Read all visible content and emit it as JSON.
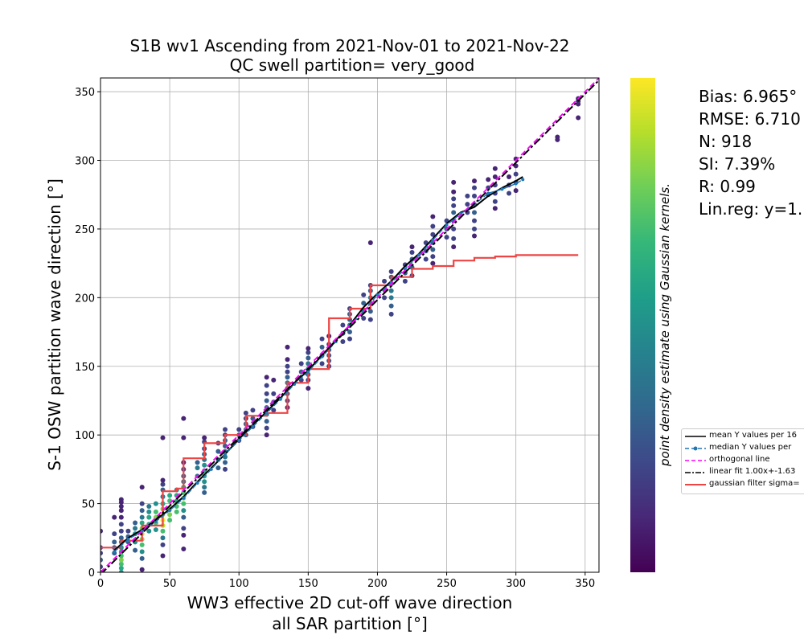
{
  "chart_data": {
    "type": "scatter",
    "title": [
      "S1B wv1 Ascending from 2021-Nov-01 to 2021-Nov-22",
      "QC swell partition= very_good"
    ],
    "xlabel": [
      "WW3 effective 2D cut-off wave direction",
      "all SAR partition [°]"
    ],
    "ylabel": "S-1 OSW partition wave direction [°]",
    "colorbar_label": "point density estimate using Gaussian kernels.",
    "xlim": [
      0,
      360
    ],
    "ylim": [
      0,
      360
    ],
    "xticks": [
      0,
      50,
      100,
      150,
      200,
      250,
      300,
      350
    ],
    "yticks": [
      0,
      50,
      100,
      150,
      200,
      250,
      300,
      350
    ],
    "grid": true,
    "legend_position": "right",
    "colormap": [
      "#440154",
      "#482878",
      "#3e4989",
      "#31688e",
      "#26828e",
      "#1f9e89",
      "#35b779",
      "#6ece58",
      "#b5de2b",
      "#fde725"
    ],
    "stats": [
      "Bias: 6.965°",
      "RMSE: 6.710",
      "N: 918",
      "SI: 7.39%",
      "R: 0.99",
      "Lin.reg: y=1."
    ],
    "legend": [
      {
        "label": "mean Y values per 16",
        "color": "#000000",
        "style": "solid"
      },
      {
        "label": "median Y values per",
        "color": "#1f77b4",
        "style": "dashed-marker"
      },
      {
        "label": "orthogonal line",
        "color": "#ff00ff",
        "style": "dashed"
      },
      {
        "label": "linear fit 1.00x+-1.63",
        "color": "#000000",
        "style": "dashdot"
      },
      {
        "label": "gaussian filter sigma=",
        "color": "#ee4444",
        "style": "solid"
      }
    ],
    "scatter_columns": [
      {
        "x": 0,
        "y": [
          0,
          4,
          9,
          14,
          18,
          30
        ],
        "d": [
          0.2,
          0.2,
          0.3,
          0.2,
          0.2,
          0.1
        ]
      },
      {
        "x": 10,
        "y": [
          14,
          18,
          22,
          28,
          40
        ],
        "d": [
          0.3,
          0.3,
          0.3,
          0.2,
          0.1
        ]
      },
      {
        "x": 15,
        "y": [
          0,
          3,
          6,
          9,
          12,
          15,
          18,
          22,
          25,
          30,
          35,
          40,
          45,
          48,
          51,
          53
        ],
        "d": [
          0.5,
          0.6,
          0.7,
          0.8,
          0.7,
          0.6,
          0.5,
          0.4,
          0.3,
          0.2,
          0.2,
          0.1,
          0.1,
          0.1,
          0.1,
          0.1
        ]
      },
      {
        "x": 20,
        "y": [
          22,
          26,
          30
        ],
        "d": [
          0.3,
          0.3,
          0.2
        ]
      },
      {
        "x": 25,
        "y": [
          16,
          22,
          28,
          32,
          36
        ],
        "d": [
          0.3,
          0.5,
          0.5,
          0.4,
          0.3
        ]
      },
      {
        "x": 30,
        "y": [
          2,
          10,
          15,
          20,
          24,
          28,
          32,
          36,
          40,
          45,
          50,
          62
        ],
        "d": [
          0.1,
          0.3,
          0.5,
          0.7,
          0.8,
          0.9,
          0.8,
          0.6,
          0.4,
          0.3,
          0.2,
          0.1
        ]
      },
      {
        "x": 35,
        "y": [
          30,
          35,
          40,
          44,
          48
        ],
        "d": [
          0.5,
          0.6,
          0.6,
          0.5,
          0.4
        ]
      },
      {
        "x": 40,
        "y": [
          31,
          36,
          40,
          44,
          50
        ],
        "d": [
          0.5,
          0.7,
          0.8,
          0.7,
          0.5
        ]
      },
      {
        "x": 45,
        "y": [
          12,
          20,
          25,
          30,
          34,
          38,
          42,
          46,
          50,
          55,
          60,
          64,
          67,
          98
        ],
        "d": [
          0.1,
          0.2,
          0.4,
          0.7,
          0.9,
          1.0,
          0.95,
          0.8,
          0.6,
          0.4,
          0.3,
          0.2,
          0.1,
          0.1
        ]
      },
      {
        "x": 50,
        "y": [
          38,
          42,
          46,
          52,
          56
        ],
        "d": [
          0.7,
          0.8,
          0.8,
          0.7,
          0.6
        ]
      },
      {
        "x": 55,
        "y": [
          44,
          48,
          52,
          56,
          60
        ],
        "d": [
          0.7,
          0.7,
          0.6,
          0.6,
          0.5
        ]
      },
      {
        "x": 60,
        "y": [
          17,
          27,
          32,
          40,
          45,
          50,
          54,
          58,
          62,
          66,
          70,
          75,
          80,
          98,
          112
        ],
        "d": [
          0.1,
          0.1,
          0.2,
          0.3,
          0.5,
          0.7,
          0.8,
          0.7,
          0.6,
          0.4,
          0.3,
          0.2,
          0.1,
          0.1,
          0.1
        ]
      },
      {
        "x": 70,
        "y": [
          70,
          76,
          80
        ],
        "d": [
          0.4,
          0.4,
          0.3
        ]
      },
      {
        "x": 75,
        "y": [
          58,
          62,
          66,
          70,
          74,
          78,
          82,
          86,
          90,
          95,
          98
        ],
        "d": [
          0.3,
          0.4,
          0.5,
          0.6,
          0.6,
          0.5,
          0.4,
          0.3,
          0.2,
          0.2,
          0.1
        ]
      },
      {
        "x": 85,
        "y": [
          76,
          82,
          88,
          94
        ],
        "d": [
          0.3,
          0.4,
          0.3,
          0.2
        ]
      },
      {
        "x": 90,
        "y": [
          75,
          80,
          84,
          88,
          92,
          96,
          100,
          104
        ],
        "d": [
          0.2,
          0.3,
          0.4,
          0.4,
          0.3,
          0.3,
          0.2,
          0.2
        ]
      },
      {
        "x": 100,
        "y": [
          96,
          100,
          104
        ],
        "d": [
          0.2,
          0.3,
          0.2
        ]
      },
      {
        "x": 105,
        "y": [
          100,
          104,
          108,
          112,
          116
        ],
        "d": [
          0.3,
          0.4,
          0.3,
          0.2,
          0.2
        ]
      },
      {
        "x": 110,
        "y": [
          106,
          112,
          118
        ],
        "d": [
          0.2,
          0.3,
          0.2
        ]
      },
      {
        "x": 120,
        "y": [
          100,
          105,
          110,
          115,
          120,
          125,
          130,
          136,
          142
        ],
        "d": [
          0.1,
          0.2,
          0.3,
          0.4,
          0.4,
          0.3,
          0.2,
          0.2,
          0.1
        ]
      },
      {
        "x": 125,
        "y": [
          118,
          124,
          130,
          140
        ],
        "d": [
          0.2,
          0.3,
          0.2,
          0.1
        ]
      },
      {
        "x": 135,
        "y": [
          120,
          125,
          130,
          134,
          138,
          142,
          146,
          150,
          155,
          164
        ],
        "d": [
          0.1,
          0.2,
          0.3,
          0.4,
          0.4,
          0.3,
          0.2,
          0.2,
          0.1,
          0.1
        ]
      },
      {
        "x": 145,
        "y": [
          140,
          146,
          152
        ],
        "d": [
          0.2,
          0.3,
          0.2
        ]
      },
      {
        "x": 150,
        "y": [
          134,
          140,
          144,
          148,
          152,
          156,
          160,
          163
        ],
        "d": [
          0.1,
          0.2,
          0.3,
          0.4,
          0.4,
          0.3,
          0.2,
          0.1
        ]
      },
      {
        "x": 160,
        "y": [
          152,
          158,
          164,
          170
        ],
        "d": [
          0.2,
          0.3,
          0.3,
          0.2
        ]
      },
      {
        "x": 165,
        "y": [
          150,
          154,
          158,
          162,
          166,
          172
        ],
        "d": [
          0.2,
          0.3,
          0.3,
          0.3,
          0.2,
          0.1
        ]
      },
      {
        "x": 175,
        "y": [
          168,
          174,
          180
        ],
        "d": [
          0.2,
          0.3,
          0.2
        ]
      },
      {
        "x": 180,
        "y": [
          170,
          175,
          180,
          184,
          188,
          192
        ],
        "d": [
          0.2,
          0.3,
          0.4,
          0.3,
          0.3,
          0.2
        ]
      },
      {
        "x": 190,
        "y": [
          185,
          190,
          196,
          202
        ],
        "d": [
          0.2,
          0.3,
          0.3,
          0.2
        ]
      },
      {
        "x": 195,
        "y": [
          184,
          190,
          196,
          200,
          205,
          209,
          240
        ],
        "d": [
          0.2,
          0.3,
          0.4,
          0.4,
          0.3,
          0.2,
          0.1
        ]
      },
      {
        "x": 205,
        "y": [
          200,
          206,
          212
        ],
        "d": [
          0.2,
          0.3,
          0.2
        ]
      },
      {
        "x": 210,
        "y": [
          188,
          194,
          200,
          205,
          210,
          215,
          219
        ],
        "d": [
          0.2,
          0.3,
          0.4,
          0.4,
          0.3,
          0.3,
          0.2
        ]
      },
      {
        "x": 220,
        "y": [
          212,
          218,
          224
        ],
        "d": [
          0.2,
          0.3,
          0.2
        ]
      },
      {
        "x": 225,
        "y": [
          216,
          222,
          228,
          233,
          237
        ],
        "d": [
          0.2,
          0.3,
          0.3,
          0.2,
          0.1
        ]
      },
      {
        "x": 235,
        "y": [
          228,
          234,
          240
        ],
        "d": [
          0.2,
          0.3,
          0.2
        ]
      },
      {
        "x": 240,
        "y": [
          225,
          230,
          235,
          240,
          246,
          252,
          259
        ],
        "d": [
          0.1,
          0.2,
          0.3,
          0.3,
          0.2,
          0.2,
          0.1
        ]
      },
      {
        "x": 250,
        "y": [
          244,
          250,
          256
        ],
        "d": [
          0.2,
          0.3,
          0.2
        ]
      },
      {
        "x": 255,
        "y": [
          237,
          243,
          250,
          256,
          262,
          267,
          272,
          277,
          284
        ],
        "d": [
          0.1,
          0.2,
          0.2,
          0.3,
          0.3,
          0.2,
          0.2,
          0.1,
          0.1
        ]
      },
      {
        "x": 265,
        "y": [
          262,
          268,
          274
        ],
        "d": [
          0.2,
          0.2,
          0.2
        ]
      },
      {
        "x": 270,
        "y": [
          245,
          250,
          256,
          262,
          268,
          274,
          280,
          285
        ],
        "d": [
          0.1,
          0.2,
          0.2,
          0.3,
          0.3,
          0.2,
          0.2,
          0.1
        ]
      },
      {
        "x": 280,
        "y": [
          275,
          280,
          286
        ],
        "d": [
          0.2,
          0.2,
          0.1
        ]
      },
      {
        "x": 285,
        "y": [
          265,
          270,
          276,
          282,
          288,
          294
        ],
        "d": [
          0.1,
          0.2,
          0.2,
          0.2,
          0.1,
          0.1
        ]
      },
      {
        "x": 295,
        "y": [
          276,
          282,
          288
        ],
        "d": [
          0.2,
          0.2,
          0.1
        ]
      },
      {
        "x": 300,
        "y": [
          278,
          284,
          290,
          296,
          301
        ],
        "d": [
          0.1,
          0.2,
          0.2,
          0.1,
          0.1
        ]
      },
      {
        "x": 330,
        "y": [
          315,
          317
        ],
        "d": [
          0.1,
          0.1
        ]
      },
      {
        "x": 345,
        "y": [
          331,
          341,
          343,
          345
        ],
        "d": [
          0.1,
          0.1,
          0.1,
          0.1
        ]
      }
    ],
    "series": [
      {
        "name": "mean Y values per 16",
        "x": [
          10,
          20,
          30,
          40,
          50,
          60,
          70,
          80,
          90,
          100,
          110,
          120,
          130,
          140,
          150,
          160,
          170,
          180,
          190,
          200,
          210,
          220,
          230,
          240,
          250,
          260,
          270,
          280,
          290,
          300,
          305
        ],
        "y": [
          16,
          25,
          31,
          38,
          46,
          55,
          66,
          76,
          86,
          97,
          107,
          117,
          127,
          138,
          147,
          158,
          169,
          180,
          193,
          203,
          212,
          223,
          232,
          243,
          254,
          262,
          266,
          274,
          280,
          285,
          288
        ]
      },
      {
        "name": "median Y values per",
        "x": [
          10,
          20,
          30,
          40,
          50,
          60,
          70,
          80,
          90,
          100,
          110,
          120,
          130,
          140,
          150,
          160,
          170,
          180,
          190,
          200,
          210,
          220,
          230,
          240,
          250,
          260,
          270,
          280,
          290,
          300,
          305
        ],
        "y": [
          15,
          24,
          30,
          37,
          45,
          54,
          65,
          75,
          86,
          96,
          106,
          116,
          126,
          137,
          146,
          157,
          168,
          179,
          190,
          202,
          211,
          221,
          231,
          242,
          253,
          261,
          268,
          276,
          279,
          283,
          286
        ]
      },
      {
        "name": "orthogonal line",
        "x": [
          0,
          360
        ],
        "y": [
          0,
          360
        ]
      },
      {
        "name": "linear fit 1.00x+-1.63",
        "x": [
          0,
          360
        ],
        "y": [
          -1.63,
          358.37
        ]
      },
      {
        "name": "gaussian filter sigma=",
        "x": [
          0,
          15,
          15,
          30,
          30,
          45,
          45,
          55,
          55,
          60,
          60,
          75,
          75,
          90,
          90,
          105,
          105,
          120,
          120,
          135,
          135,
          150,
          150,
          165,
          165,
          180,
          180,
          195,
          195,
          210,
          210,
          225,
          225,
          240,
          240,
          255,
          255,
          270,
          270,
          285,
          285,
          300,
          300,
          345
        ],
        "y": [
          18,
          18,
          23,
          23,
          34,
          34,
          59,
          59,
          61,
          61,
          83,
          83,
          94,
          94,
          100,
          100,
          114,
          114,
          116,
          116,
          138,
          138,
          148,
          148,
          185,
          185,
          192,
          192,
          209,
          209,
          215,
          215,
          221,
          221,
          223,
          223,
          227,
          227,
          229,
          229,
          230,
          230,
          231,
          231
        ]
      }
    ]
  }
}
